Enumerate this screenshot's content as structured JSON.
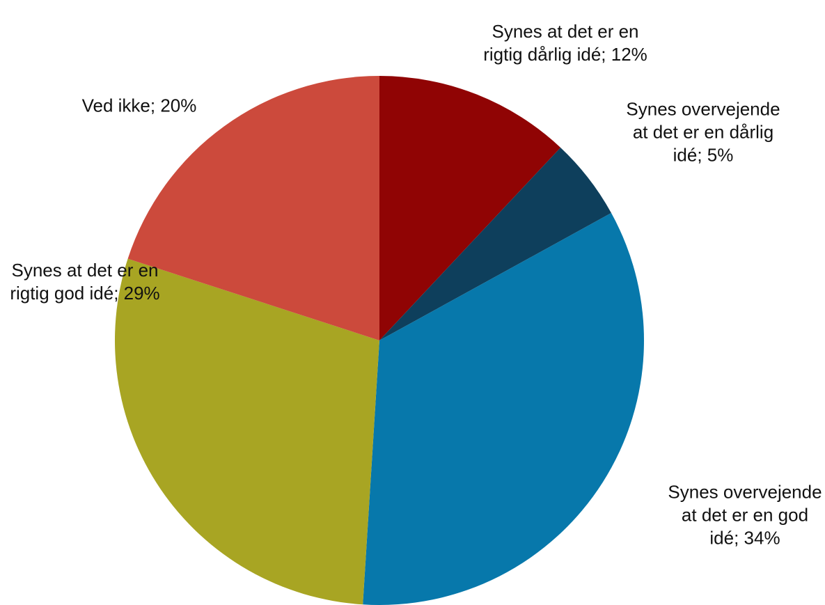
{
  "chart_data": {
    "type": "pie",
    "values": [
      12,
      5,
      34,
      29,
      20
    ],
    "value_labels": [
      "Synes at det er en rigtig dårlig idé; 12%",
      "Synes overvejende at det er en dårlig idé; 5%",
      "Synes overvejende at det er en god idé; 34%",
      "Synes at det er en rigtig god idé; 29%",
      "Ved ikke; 20%"
    ],
    "colors": [
      "#900404",
      "#0e3f5c",
      "#0778ab",
      "#a8a523",
      "#cc4a3c"
    ]
  }
}
